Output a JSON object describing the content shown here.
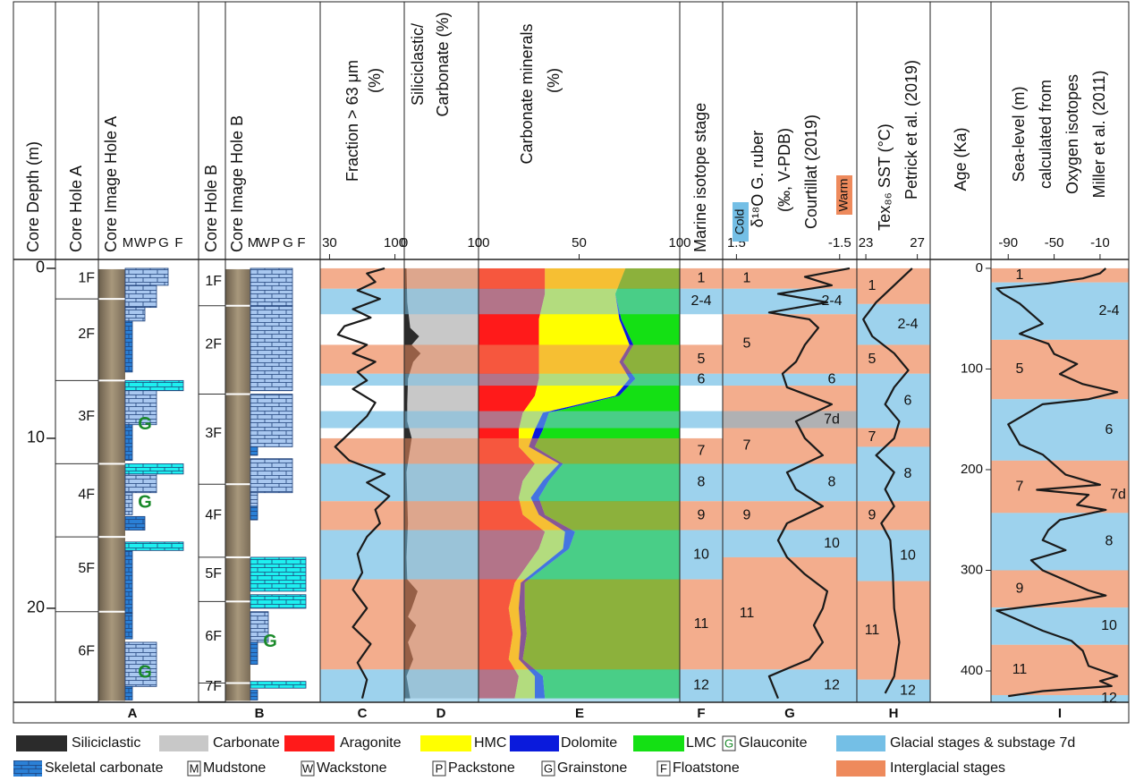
{
  "depth_axis": {
    "label": "Core Depth (m)",
    "lim": [
      -0.26,
      25.53
    ],
    "ticks": [
      0,
      10,
      20
    ]
  },
  "age_axis": {
    "label": "Age (Ka)",
    "lim": [
      -4.4,
      431.1
    ],
    "ticks": [
      0,
      100,
      200,
      300,
      400
    ]
  },
  "stage_kinds": {
    "cold": {
      "name": "Glacial stages & substage 7d",
      "color": "#74bfe6"
    },
    "warm": {
      "name": "Interglacial stages",
      "color": "#ee8a5c"
    },
    "substage": {
      "color": "#8e9093"
    }
  },
  "headers": {
    "A": [
      "Core Hole A"
    ],
    "Aimg": [
      "Core Image Hole A"
    ],
    "B": [
      "Core Hole B"
    ],
    "Bimg": [
      "Core Image Hole B"
    ]
  },
  "textures": [
    {
      "code": "M",
      "name": "Mudstone"
    },
    {
      "code": "W",
      "name": "Wackstone"
    },
    {
      "code": "P",
      "name": "Packstone"
    },
    {
      "code": "G",
      "name": "Grainstone"
    },
    {
      "code": "F",
      "name": "Floatstone"
    }
  ],
  "lithology_colors": {
    "light": "#a9c8f0",
    "dark": "#2b80d6",
    "cyan": "#1ef0f0"
  },
  "skeletal": "Skeletal carbonate",
  "glauconite": {
    "label": "G",
    "name": "Glauconite",
    "color": "#1a8a2a",
    "A": [
      9.2,
      13.8,
      23.8
    ],
    "B": [
      22.0
    ]
  },
  "cores": {
    "A": {
      "sections": [
        {
          "label": "1F",
          "from": 0,
          "to": 1.8
        },
        {
          "label": "2F",
          "from": 1.8,
          "to": 6.6
        },
        {
          "label": "3F",
          "from": 6.6,
          "to": 11.5
        },
        {
          "label": "4F",
          "from": 11.5,
          "to": 15.8
        },
        {
          "label": "5F",
          "from": 15.8,
          "to": 20.2
        },
        {
          "label": "6F",
          "from": 20.2,
          "to": 25.5
        }
      ],
      "lithology": [
        {
          "from": 0,
          "to": 1,
          "texture": "G",
          "kind": "light"
        },
        {
          "from": 1,
          "to": 2.3,
          "texture": "P",
          "kind": "light"
        },
        {
          "from": 2.3,
          "to": 3.1,
          "texture": "W",
          "kind": "light"
        },
        {
          "from": 3.1,
          "to": 6.1,
          "texture": "M",
          "kind": "dark"
        },
        {
          "from": 6.6,
          "to": 7.2,
          "texture": "F",
          "kind": "cyan"
        },
        {
          "from": 7.2,
          "to": 9.2,
          "texture": "P",
          "kind": "light"
        },
        {
          "from": 9.2,
          "to": 11.3,
          "texture": "M",
          "kind": "dark"
        },
        {
          "from": 11.5,
          "to": 12.1,
          "texture": "F",
          "kind": "cyan"
        },
        {
          "from": 12.1,
          "to": 13.2,
          "texture": "P",
          "kind": "light"
        },
        {
          "from": 13.2,
          "to": 14.5,
          "texture": "M",
          "kind": "light"
        },
        {
          "from": 14.6,
          "to": 15.4,
          "texture": "W",
          "kind": "dark"
        },
        {
          "from": 16.1,
          "to": 16.6,
          "texture": "F",
          "kind": "cyan"
        },
        {
          "from": 16.6,
          "to": 20.3,
          "texture": "M",
          "kind": "dark"
        },
        {
          "from": 20.3,
          "to": 21.8,
          "texture": "M",
          "kind": "dark"
        },
        {
          "from": 22,
          "to": 24.6,
          "texture": "P",
          "kind": "light"
        },
        {
          "from": 24.6,
          "to": 25.4,
          "texture": "M",
          "kind": "dark"
        }
      ]
    },
    "B": {
      "sections": [
        {
          "label": "1F",
          "from": 0,
          "to": 2.2
        },
        {
          "label": "2F",
          "from": 2.2,
          "to": 7.4
        },
        {
          "label": "3F",
          "from": 7.4,
          "to": 12.7
        },
        {
          "label": "4F",
          "from": 12.7,
          "to": 17
        },
        {
          "label": "5F",
          "from": 17,
          "to": 19.6
        },
        {
          "label": "6F",
          "from": 19.6,
          "to": 24.4
        },
        {
          "label": "7F",
          "from": 24.4,
          "to": 25.5
        }
      ],
      "lithology": [
        {
          "from": 0,
          "to": 2.2,
          "texture": "G",
          "kind": "light"
        },
        {
          "from": 2.2,
          "to": 7.2,
          "texture": "G",
          "kind": "light"
        },
        {
          "from": 7.4,
          "to": 10.5,
          "texture": "G",
          "kind": "light"
        },
        {
          "from": 10.5,
          "to": 11,
          "texture": "M",
          "kind": "dark"
        },
        {
          "from": 11.2,
          "to": 13.2,
          "texture": "G",
          "kind": "light"
        },
        {
          "from": 13.2,
          "to": 14,
          "texture": "M",
          "kind": "light"
        },
        {
          "from": 14,
          "to": 14.8,
          "texture": "M",
          "kind": "dark"
        },
        {
          "from": 17,
          "to": 19,
          "texture": "F",
          "kind": "cyan"
        },
        {
          "from": 19.2,
          "to": 20,
          "texture": "F",
          "kind": "cyan"
        },
        {
          "from": 20.2,
          "to": 22,
          "texture": "W",
          "kind": "light"
        },
        {
          "from": 22,
          "to": 23.3,
          "texture": "M",
          "kind": "dark"
        },
        {
          "from": 24.3,
          "to": 24.7,
          "texture": "F",
          "kind": "cyan"
        },
        {
          "from": 24.8,
          "to": 25.4,
          "texture": "M",
          "kind": "dark"
        }
      ]
    }
  },
  "panels": {
    "C": {
      "letter": "C",
      "header": [
        "Fraction > 63 μm",
        "(%)"
      ],
      "xlim": [
        20,
        110
      ],
      "xticks": [
        30,
        100
      ],
      "color": "#1a1a1a",
      "depth": [
        0,
        0.3,
        0.8,
        1.3,
        1.8,
        2.4,
        2.9,
        3.4,
        3.9,
        4.5,
        5,
        5.5,
        6.1,
        6.6,
        7.1,
        7.9,
        8.7,
        9.5,
        10.5,
        11.3,
        12.1,
        12.6,
        13.4,
        14.2,
        15,
        15.8,
        16.8,
        17.9,
        18.9,
        20,
        21.1,
        22.1,
        23.2,
        24.2,
        25.3
      ],
      "values": [
        89,
        70,
        79,
        60,
        84,
        55,
        74,
        46,
        39,
        70,
        55,
        79,
        60,
        70,
        55,
        79,
        70,
        55,
        36,
        51,
        89,
        70,
        94,
        79,
        84,
        70,
        60,
        65,
        55,
        70,
        55,
        74,
        60,
        70,
        65
      ]
    },
    "D": {
      "letter": "D",
      "header": [
        "Siliciclastic/",
        "Carbonate (%)"
      ],
      "xlim": [
        0,
        100
      ],
      "xticks": [
        0,
        100
      ],
      "depth": [
        0,
        2,
        3.5,
        4,
        4.5,
        5,
        5.5,
        6.5,
        8,
        9,
        10,
        12,
        15,
        17,
        18.3,
        19,
        20,
        20.5,
        21,
        22,
        23,
        24,
        25.3
      ],
      "series": [
        {
          "name": "Siliciclastic",
          "color": "#2b2b2b",
          "values": [
            3,
            4,
            8,
            20,
            10,
            22,
            12,
            5,
            4,
            4,
            10,
            3,
            5,
            3,
            4,
            18,
            10,
            5,
            16,
            5,
            12,
            3,
            8
          ]
        },
        {
          "name": "Carbonate",
          "color": "#c8c8c8"
        }
      ]
    },
    "E": {
      "letter": "E",
      "header": [
        "Carbonate minerals",
        "(%)"
      ],
      "xlim": [
        0,
        100
      ],
      "xticks": [
        0,
        50,
        100
      ],
      "depth": [
        0,
        1.5,
        3,
        4.5,
        5.5,
        6.5,
        7.5,
        8.5,
        9.5,
        10.5,
        11.5,
        12.5,
        13.5,
        14.5,
        15.5,
        16.5,
        18.5,
        20,
        21.5,
        23,
        24,
        25.3
      ],
      "series": [
        {
          "name": "Aragonite",
          "color": "#ff1a1a",
          "values": [
            33,
            33,
            30,
            30,
            30,
            30,
            28,
            22,
            20,
            20,
            28,
            22,
            20,
            22,
            33,
            30,
            18,
            15,
            17,
            15,
            20,
            18
          ]
        },
        {
          "name": "HMC",
          "color": "#ffff00",
          "values": [
            40,
            35,
            40,
            45,
            40,
            45,
            40,
            10,
            8,
            5,
            12,
            10,
            6,
            8,
            10,
            12,
            3,
            5,
            4,
            5,
            8,
            10
          ]
        },
        {
          "name": "Dolomite",
          "color": "#0a1adc",
          "values": [
            0,
            0,
            1,
            2,
            2,
            3,
            2,
            3,
            4,
            3,
            2,
            3,
            4,
            3,
            5,
            3,
            2,
            3,
            3,
            2,
            4,
            5
          ]
        },
        {
          "name": "LMC",
          "color": "#14e014",
          "values": [
            27,
            32,
            29,
            23,
            28,
            22,
            30,
            65,
            68,
            72,
            58,
            65,
            70,
            67,
            52,
            55,
            77,
            77,
            76,
            78,
            68,
            67
          ]
        }
      ]
    },
    "F": {
      "letter": "F",
      "header": [
        "Marine isotope stage"
      ],
      "bands": [
        {
          "from": 0,
          "to": 1.2,
          "kind": "warm",
          "label": "1"
        },
        {
          "from": 1.2,
          "to": 2.7,
          "kind": "cold",
          "label": "2-4"
        },
        {
          "from": 4.5,
          "to": 6.2,
          "kind": "warm",
          "label": "5"
        },
        {
          "from": 6.2,
          "to": 6.9,
          "kind": "cold",
          "label": "6"
        },
        {
          "from": 8.4,
          "to": 9.4,
          "kind": "cold",
          "label": null
        },
        {
          "from": 10,
          "to": 11.5,
          "kind": "warm",
          "label": "7"
        },
        {
          "from": 11.5,
          "to": 13.7,
          "kind": "cold",
          "label": "8"
        },
        {
          "from": 13.7,
          "to": 15.4,
          "kind": "warm",
          "label": "9"
        },
        {
          "from": 15.4,
          "to": 18.3,
          "kind": "cold",
          "label": "10"
        },
        {
          "from": 18.3,
          "to": 23.6,
          "kind": "warm",
          "label": "11"
        },
        {
          "from": 23.6,
          "to": 25.5,
          "kind": "cold",
          "label": "12"
        }
      ]
    },
    "G": {
      "letter": "G",
      "header": [
        "δ¹⁸O G. ruber",
        "(‰, V-PDB)",
        "Courtillat (2019)"
      ],
      "tags": [
        "Cold",
        "Warm"
      ],
      "xlim": [
        1.9,
        -2.0
      ],
      "xticks": [
        1.5,
        -1.5
      ],
      "color": "#1a1a1a",
      "depth": [
        0,
        0.5,
        1,
        1.5,
        2,
        2.6,
        3,
        3.5,
        4.5,
        5.5,
        6.2,
        7,
        8,
        9,
        10,
        11,
        12,
        13,
        14,
        15,
        16,
        17,
        18,
        19,
        20,
        21,
        22,
        23,
        24,
        25.3
      ],
      "values": [
        -1.79,
        -0.49,
        -1.27,
        0.29,
        -1.14,
        0.55,
        -0.62,
        -0.88,
        -0.49,
        -0.23,
        0.16,
        0.03,
        -1.27,
        -0.23,
        -0.49,
        -1.01,
        0.03,
        -0.23,
        -1.01,
        0.03,
        0.29,
        0.03,
        -0.49,
        -1.14,
        -1.01,
        -0.75,
        -1.01,
        -0.62,
        0.55,
        0.29
      ],
      "bands": [
        {
          "from": 0,
          "to": 1.2,
          "kind": "warm",
          "label": "1"
        },
        {
          "from": 1.2,
          "to": 2.7,
          "kind": "cold",
          "label": "2-4"
        },
        {
          "from": 2.7,
          "to": 6.2,
          "kind": "warm",
          "label": "5"
        },
        {
          "from": 6.2,
          "to": 6.9,
          "kind": "cold",
          "label": "6"
        },
        {
          "from": 6.9,
          "to": 8.4,
          "kind": "warm",
          "label": null
        },
        {
          "from": 8.4,
          "to": 9.4,
          "kind": "substage",
          "label": "7d"
        },
        {
          "from": 9.4,
          "to": 11.5,
          "kind": "warm",
          "label": "7"
        },
        {
          "from": 11.5,
          "to": 13.7,
          "kind": "cold",
          "label": "8"
        },
        {
          "from": 13.7,
          "to": 15.4,
          "kind": "warm",
          "label": "9"
        },
        {
          "from": 15.4,
          "to": 17,
          "kind": "cold",
          "label": "10"
        },
        {
          "from": 17,
          "to": 23.6,
          "kind": "warm",
          "label": "11"
        },
        {
          "from": 23.6,
          "to": 25.5,
          "kind": "cold",
          "label": "12"
        }
      ]
    },
    "H": {
      "letter": "H",
      "header": [
        "Tex₈₆ SST (°C)",
        "Petrick et al. (2019)"
      ],
      "xlim": [
        22.3,
        28.0
      ],
      "xticks": [
        23,
        27
      ],
      "color": "#1a1a1a",
      "depth": [
        0,
        0.5,
        1,
        2,
        3,
        4,
        5,
        6,
        7,
        8,
        9,
        10,
        11,
        12,
        13,
        14,
        15,
        16,
        18,
        20,
        22,
        24,
        25
      ],
      "values": [
        26.6,
        25.9,
        25.2,
        23.8,
        22.8,
        23.5,
        25.2,
        26.3,
        25.2,
        24.5,
        25.6,
        25.2,
        23.8,
        25.2,
        24.5,
        25.2,
        24.2,
        24.9,
        25.1,
        25.2,
        25.6,
        25.2,
        24.5
      ],
      "bands": [
        {
          "from": 0,
          "to": 2.1,
          "kind": "warm",
          "label": "1"
        },
        {
          "from": 2.1,
          "to": 4.5,
          "kind": "cold",
          "label": "2-4"
        },
        {
          "from": 4.5,
          "to": 6.2,
          "kind": "warm",
          "label": "5"
        },
        {
          "from": 6.2,
          "to": 9.4,
          "kind": "cold",
          "label": "6"
        },
        {
          "from": 9.4,
          "to": 10.5,
          "kind": "warm",
          "label": "7"
        },
        {
          "from": 10.5,
          "to": 13.7,
          "kind": "cold",
          "label": "8"
        },
        {
          "from": 13.7,
          "to": 15.4,
          "kind": "warm",
          "label": "9"
        },
        {
          "from": 15.4,
          "to": 18.4,
          "kind": "cold",
          "label": "10"
        },
        {
          "from": 18.4,
          "to": 24.2,
          "kind": "warm",
          "label": "11"
        },
        {
          "from": 24.2,
          "to": 25.5,
          "kind": "cold",
          "label": "12"
        }
      ]
    },
    "I": {
      "letter": "I",
      "header": [
        "Sea-level (m)",
        "calculated from",
        "Oxygen isotopes",
        "Miller et al. (2011)"
      ],
      "xlim": [
        -105,
        15
      ],
      "xticks": [
        -90,
        -50,
        -10
      ],
      "color": "#1a1a1a",
      "age": [
        0,
        5,
        10,
        15,
        20,
        25,
        35,
        45,
        55,
        65,
        75,
        85,
        95,
        105,
        115,
        123,
        130,
        135,
        145,
        155,
        165,
        175,
        185,
        195,
        205,
        215,
        220,
        225,
        235,
        240,
        250,
        260,
        270,
        280,
        290,
        300,
        310,
        320,
        325,
        330,
        340,
        350,
        360,
        370,
        380,
        395,
        405,
        410,
        415,
        420,
        425
      ],
      "values": [
        -5,
        -10,
        -25,
        -55,
        -100,
        -95,
        -80,
        -70,
        -60,
        -80,
        -55,
        -50,
        -30,
        -45,
        -25,
        5,
        -20,
        -60,
        -75,
        -90,
        -85,
        -80,
        -60,
        -50,
        -40,
        -10,
        -65,
        -20,
        -30,
        -5,
        -45,
        -55,
        -60,
        -40,
        -70,
        -60,
        -40,
        -20,
        -5,
        -30,
        -100,
        -80,
        -60,
        -35,
        -25,
        -20,
        5,
        -10,
        0,
        -60,
        -90
      ],
      "bands": [
        {
          "from": 0,
          "to": 14,
          "kind": "warm",
          "label": "1"
        },
        {
          "from": 14,
          "to": 71,
          "kind": "cold",
          "label": "2-4"
        },
        {
          "from": 71,
          "to": 130,
          "kind": "warm",
          "label": "5"
        },
        {
          "from": 130,
          "to": 191,
          "kind": "cold",
          "label": "6"
        },
        {
          "from": 191,
          "to": 243,
          "kind": "warm",
          "label": "7"
        },
        {
          "from": 243,
          "to": 300,
          "kind": "cold",
          "label": "8"
        },
        {
          "from": 300,
          "to": 337,
          "kind": "warm",
          "label": "9"
        },
        {
          "from": 337,
          "to": 374,
          "kind": "cold",
          "label": "10"
        },
        {
          "from": 374,
          "to": 424,
          "kind": "warm",
          "label": "11"
        },
        {
          "from": 424,
          "to": 431,
          "kind": "cold",
          "label": "12"
        }
      ],
      "notes": [
        {
          "label": "7d",
          "age": 225
        }
      ]
    }
  },
  "core_letters": {
    "A": "A",
    "B": "B"
  }
}
